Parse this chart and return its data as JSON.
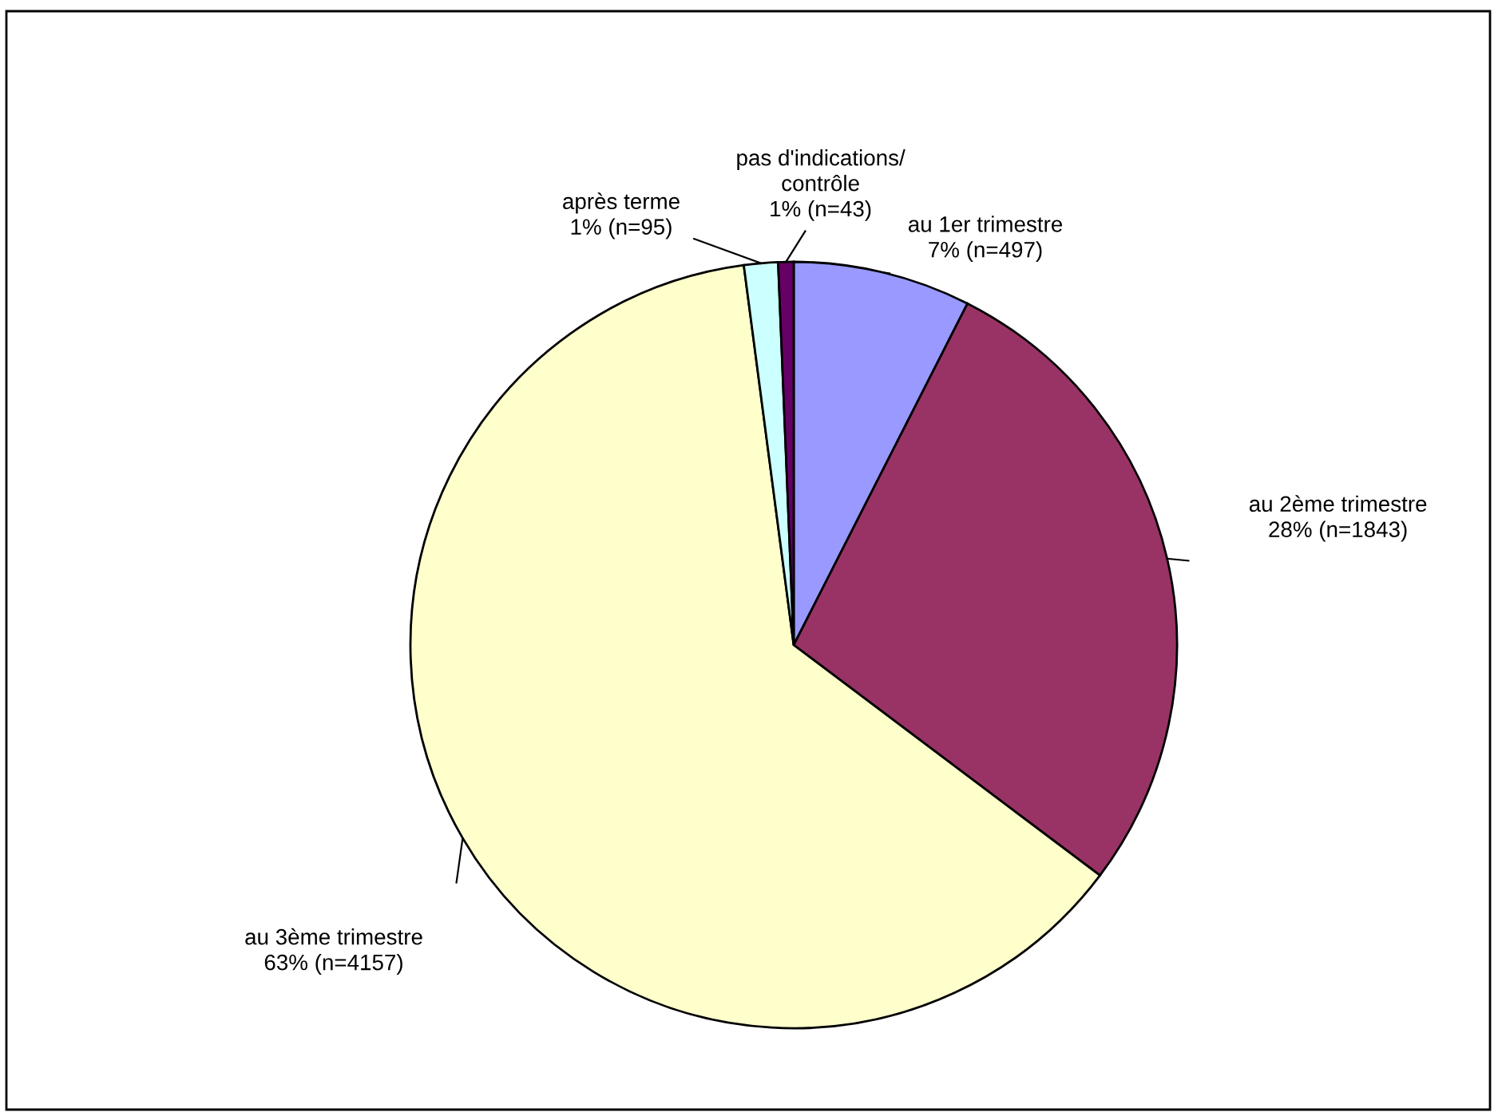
{
  "chart_data": {
    "type": "pie",
    "categories": [
      "au 1er trimestre",
      "au 2ème trimestre",
      "au 3ème trimestre",
      "après terme",
      "pas d'indications/\ncontrôle"
    ],
    "values": [
      497,
      1843,
      4157,
      95,
      43
    ],
    "value_labels": [
      "7% (n=497)",
      "28% (n=1843)",
      "63% (n=4157)",
      "1% (n=95)",
      "1% (n=43)"
    ],
    "colors": [
      "#9999ff",
      "#993366",
      "#ffffcc",
      "#ccffff",
      "#660066"
    ],
    "legend": false
  }
}
